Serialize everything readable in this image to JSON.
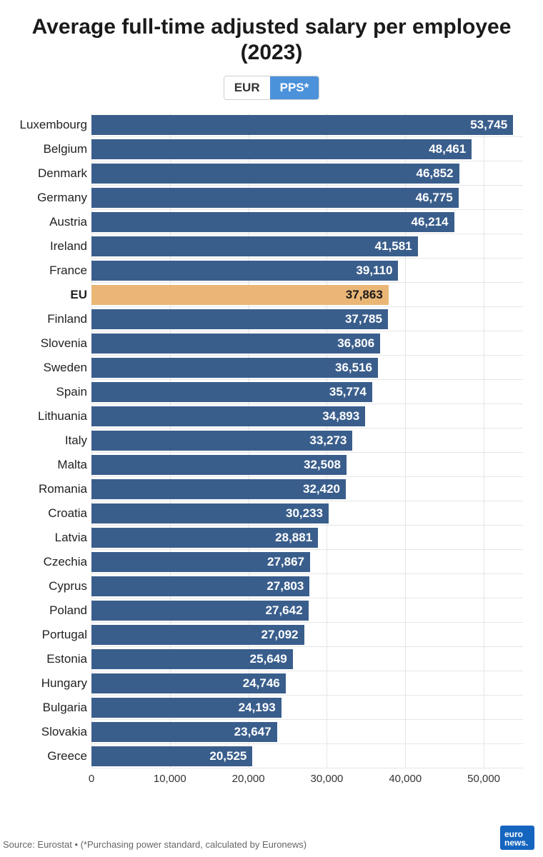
{
  "title": "Average full-time adjusted salary per employee (2023)",
  "toggle": {
    "left": "EUR",
    "right": "PPS*",
    "active": "right"
  },
  "chart": {
    "type": "bar-horizontal",
    "xmax": 55000,
    "xticks": [
      {
        "v": 0,
        "label": "0"
      },
      {
        "v": 10000,
        "label": "10,000"
      },
      {
        "v": 20000,
        "label": "20,000"
      },
      {
        "v": 30000,
        "label": "30,000"
      },
      {
        "v": 40000,
        "label": "40,000"
      },
      {
        "v": 50000,
        "label": "50,000"
      }
    ],
    "bar_color": "#3a5e8c",
    "highlight_color": "#eab676",
    "bar_text_color": "#ffffff",
    "highlight_text_color": "#1a1a1a",
    "grid_color": "#e6e6e6",
    "background": "#ffffff",
    "label_fontsize": 17,
    "value_fontsize": 17,
    "rows": [
      {
        "label": "Luxembourg",
        "value": 53745,
        "display": "53,745",
        "highlight": false
      },
      {
        "label": "Belgium",
        "value": 48461,
        "display": "48,461",
        "highlight": false
      },
      {
        "label": "Denmark",
        "value": 46852,
        "display": "46,852",
        "highlight": false
      },
      {
        "label": "Germany",
        "value": 46775,
        "display": "46,775",
        "highlight": false
      },
      {
        "label": "Austria",
        "value": 46214,
        "display": "46,214",
        "highlight": false
      },
      {
        "label": "Ireland",
        "value": 41581,
        "display": "41,581",
        "highlight": false
      },
      {
        "label": "France",
        "value": 39110,
        "display": "39,110",
        "highlight": false
      },
      {
        "label": "EU",
        "value": 37863,
        "display": "37,863",
        "highlight": true
      },
      {
        "label": "Finland",
        "value": 37785,
        "display": "37,785",
        "highlight": false
      },
      {
        "label": "Slovenia",
        "value": 36806,
        "display": "36,806",
        "highlight": false
      },
      {
        "label": "Sweden",
        "value": 36516,
        "display": "36,516",
        "highlight": false
      },
      {
        "label": "Spain",
        "value": 35774,
        "display": "35,774",
        "highlight": false
      },
      {
        "label": "Lithuania",
        "value": 34893,
        "display": "34,893",
        "highlight": false
      },
      {
        "label": "Italy",
        "value": 33273,
        "display": "33,273",
        "highlight": false
      },
      {
        "label": "Malta",
        "value": 32508,
        "display": "32,508",
        "highlight": false
      },
      {
        "label": "Romania",
        "value": 32420,
        "display": "32,420",
        "highlight": false
      },
      {
        "label": "Croatia",
        "value": 30233,
        "display": "30,233",
        "highlight": false
      },
      {
        "label": "Latvia",
        "value": 28881,
        "display": "28,881",
        "highlight": false
      },
      {
        "label": "Czechia",
        "value": 27867,
        "display": "27,867",
        "highlight": false
      },
      {
        "label": "Cyprus",
        "value": 27803,
        "display": "27,803",
        "highlight": false
      },
      {
        "label": "Poland",
        "value": 27642,
        "display": "27,642",
        "highlight": false
      },
      {
        "label": "Portugal",
        "value": 27092,
        "display": "27,092",
        "highlight": false
      },
      {
        "label": "Estonia",
        "value": 25649,
        "display": "25,649",
        "highlight": false
      },
      {
        "label": "Hungary",
        "value": 24746,
        "display": "24,746",
        "highlight": false
      },
      {
        "label": "Bulgaria",
        "value": 24193,
        "display": "24,193",
        "highlight": false
      },
      {
        "label": "Slovakia",
        "value": 23647,
        "display": "23,647",
        "highlight": false
      },
      {
        "label": "Greece",
        "value": 20525,
        "display": "20,525",
        "highlight": false
      }
    ]
  },
  "source": "Source: Eurostat • (*Purchasing power standard, calculated by Euronews)",
  "logo": {
    "line1": "euro",
    "line2": "news"
  }
}
